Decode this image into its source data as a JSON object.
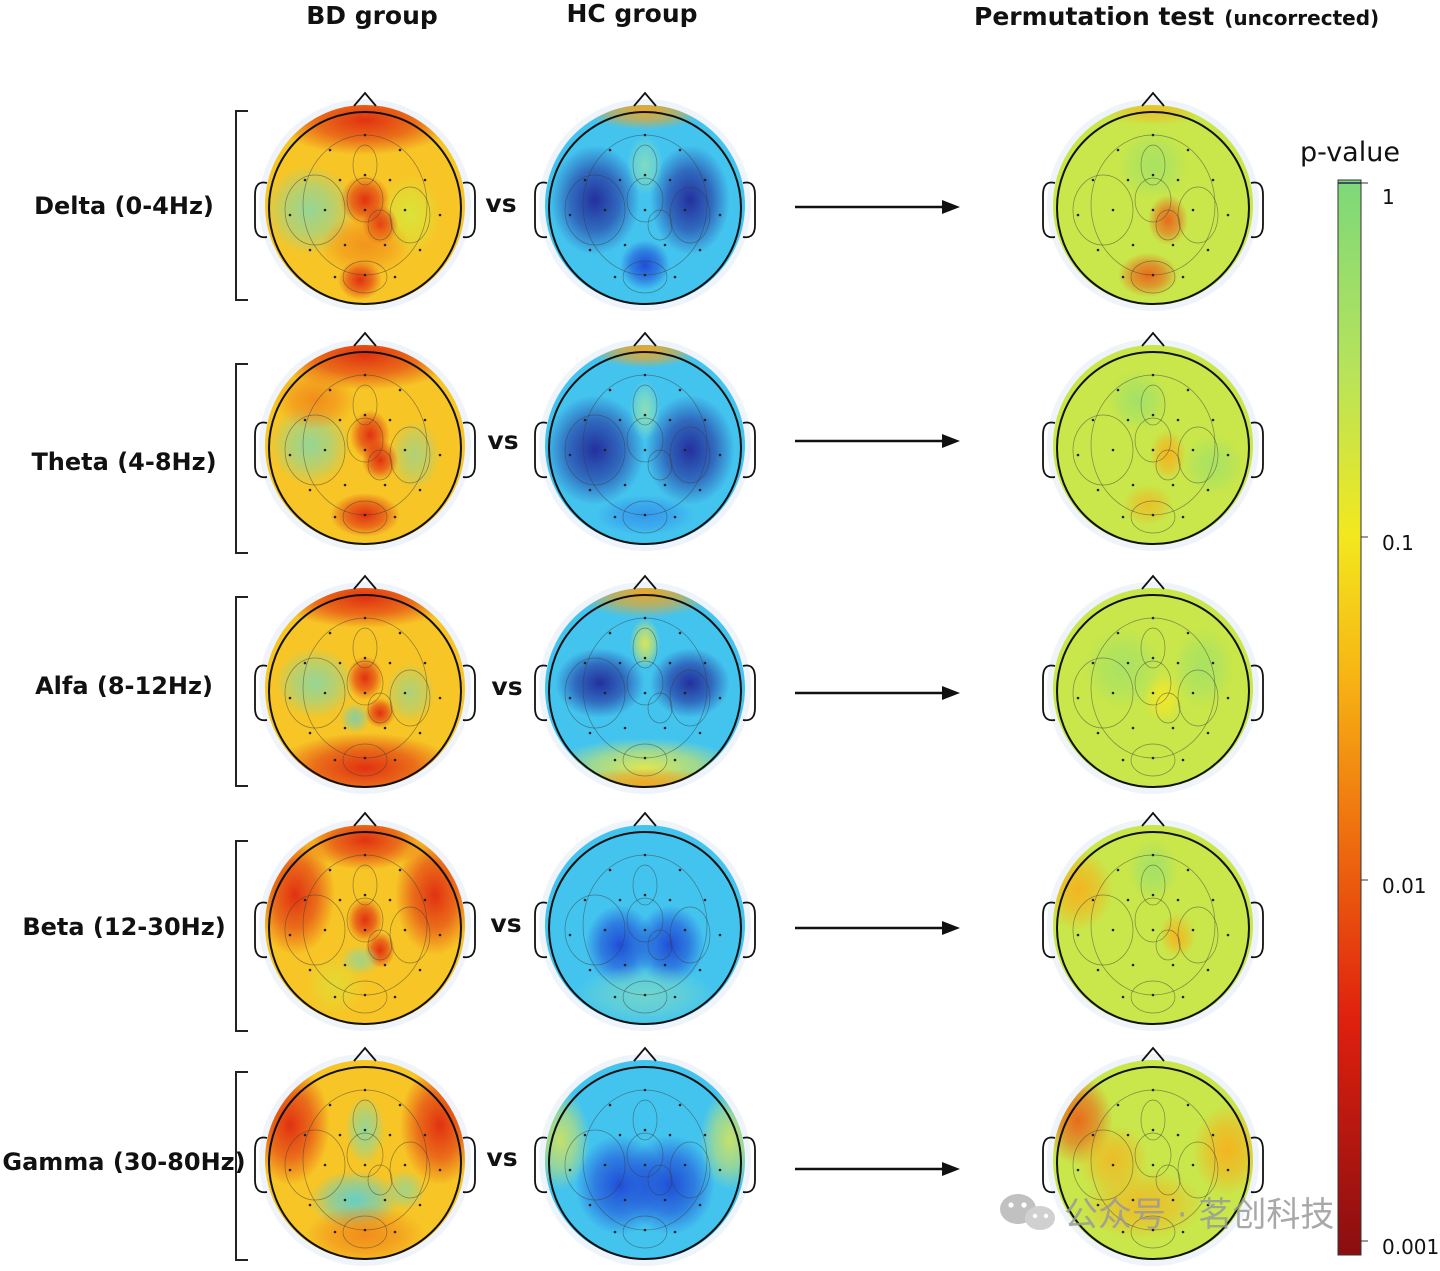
{
  "headers": {
    "bd_group": "BD group",
    "hc_group": "HC group",
    "permutation_main": "Permutation test",
    "permutation_sub": "(uncorrected)"
  },
  "vs_label": "vs",
  "rows": [
    {
      "band": "Delta (0-4Hz)"
    },
    {
      "band": "Theta (4-8Hz)"
    },
    {
      "band": "Alfa (8-12Hz)"
    },
    {
      "band": "Beta (12-30Hz)"
    },
    {
      "band": "Gamma (30-80Hz)"
    }
  ],
  "colorbar": {
    "title": "p-value",
    "ticks": [
      "1",
      "0.1",
      "0.01",
      "0.001"
    ],
    "colors": [
      "#7dd87a",
      "#b8e35a",
      "#f2e81e",
      "#f7b514",
      "#ee6a0e",
      "#e0200e",
      "#8a0e10"
    ]
  },
  "watermark": "公众号 · 茗创科技",
  "map_palettes": {
    "bd": [
      "#e02a10",
      "#f07f18",
      "#f7c526",
      "#d9e53a",
      "#8fd79c",
      "#5fd0cf"
    ],
    "hc": [
      "#22289a",
      "#1e48d6",
      "#2f86ea",
      "#43c4ef",
      "#8fe0b6",
      "#e6e94a",
      "#f5a51c"
    ],
    "perm": [
      "#9be06e",
      "#c9e64a",
      "#f3e72a",
      "#f6b21e",
      "#ea641a",
      "#c22a14"
    ]
  }
}
